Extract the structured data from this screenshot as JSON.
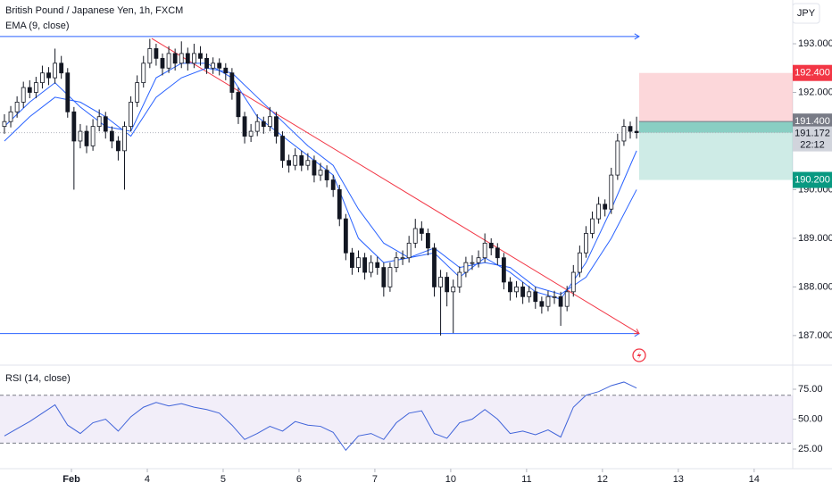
{
  "header": {
    "symbol": "British Pound / Japanese Yen, 1h, FXCM",
    "currency": "JPY"
  },
  "chart_data": [
    {
      "type": "candlestick",
      "up_color": "#ffffff",
      "down_color": "#131722",
      "outline": "#131722",
      "xlim": [
        -0.7,
        124.7
      ],
      "ylim": [
        186.41,
        193.9
      ],
      "yticks": [
        {
          "value": 193,
          "label": "193.000"
        },
        {
          "value": 192,
          "label": "192.000"
        },
        {
          "value": 190,
          "label": "190.000"
        },
        {
          "value": 189,
          "label": "189.000"
        },
        {
          "value": 188,
          "label": "188.000"
        },
        {
          "value": 187,
          "label": "187.000"
        }
      ],
      "xticks": [
        {
          "value": 10.6,
          "label": "Feb"
        },
        {
          "value": 22.6,
          "label": "4"
        },
        {
          "value": 34.6,
          "label": "5"
        },
        {
          "value": 46.6,
          "label": "6"
        },
        {
          "value": 58.6,
          "label": "7"
        },
        {
          "value": 70.6,
          "label": "10"
        },
        {
          "value": 82.6,
          "label": "11"
        },
        {
          "value": 94.6,
          "label": "12"
        },
        {
          "value": 106.6,
          "label": "13"
        },
        {
          "value": 118.6,
          "label": "14"
        }
      ],
      "x": [
        0,
        1,
        2,
        3,
        4,
        5,
        6,
        7,
        8,
        9,
        10,
        11,
        12,
        13,
        14,
        15,
        16,
        17,
        18,
        19,
        20,
        21,
        22,
        23,
        24,
        25,
        26,
        27,
        28,
        29,
        30,
        31,
        32,
        33,
        34,
        35,
        36,
        37,
        38,
        39,
        40,
        41,
        42,
        43,
        44,
        45,
        46,
        47,
        48,
        49,
        50,
        51,
        52,
        53,
        54,
        55,
        56,
        57,
        58,
        59,
        60,
        61,
        62,
        63,
        64,
        65,
        66,
        67,
        68,
        69,
        70,
        71,
        72,
        73,
        74,
        75,
        76,
        77,
        78,
        79,
        80,
        81,
        82,
        83,
        84,
        85,
        86,
        87,
        88,
        89,
        90,
        91,
        92,
        93,
        94,
        95,
        96,
        97,
        98,
        99,
        100
      ],
      "open": [
        191.3,
        191.4,
        191.6,
        191.8,
        192.1,
        192.0,
        192.2,
        192.4,
        192.3,
        192.6,
        192.4,
        191.6,
        191.0,
        191.2,
        190.9,
        191.3,
        191.5,
        191.2,
        191.0,
        190.8,
        191.3,
        191.8,
        192.2,
        192.6,
        192.9,
        192.7,
        192.5,
        192.8,
        192.6,
        192.8,
        192.6,
        192.8,
        192.7,
        192.5,
        192.6,
        192.5,
        192.4,
        192.0,
        191.5,
        191.1,
        191.2,
        191.4,
        191.3,
        191.5,
        191.1,
        190.6,
        190.5,
        190.7,
        190.5,
        190.6,
        190.3,
        190.4,
        190.2,
        190.0,
        189.4,
        188.7,
        188.4,
        188.6,
        188.3,
        188.5,
        188.4,
        188.0,
        188.4,
        188.6,
        188.6,
        188.9,
        189.2,
        189.1,
        188.8,
        188.0,
        188.2,
        187.9,
        188.0,
        188.3,
        188.5,
        188.5,
        188.6,
        188.9,
        188.8,
        188.6,
        188.1,
        187.9,
        188.0,
        187.8,
        187.9,
        187.7,
        187.6,
        187.8,
        187.8,
        187.6,
        187.9,
        188.3,
        188.7,
        189.1,
        189.4,
        189.7,
        189.6,
        190.3,
        191.0,
        191.3,
        191.2
      ],
      "high": [
        191.55,
        191.72,
        191.92,
        192.22,
        192.25,
        192.32,
        192.55,
        192.52,
        192.9,
        192.75,
        192.5,
        191.7,
        191.35,
        191.32,
        191.45,
        191.65,
        191.6,
        191.3,
        191.1,
        191.4,
        191.92,
        192.35,
        192.75,
        193.1,
        193.0,
        192.8,
        192.95,
        192.9,
        193.05,
        192.92,
        193.0,
        192.95,
        192.8,
        192.72,
        192.7,
        192.6,
        192.5,
        192.1,
        191.6,
        191.35,
        191.55,
        191.5,
        191.7,
        191.6,
        191.2,
        190.72,
        190.85,
        190.8,
        190.75,
        190.7,
        190.55,
        190.5,
        190.3,
        190.1,
        189.5,
        188.8,
        188.75,
        188.7,
        188.65,
        188.62,
        188.5,
        188.5,
        188.72,
        188.75,
        189.05,
        189.4,
        189.35,
        189.2,
        188.9,
        188.35,
        188.3,
        188.15,
        188.42,
        188.62,
        188.65,
        188.75,
        189.1,
        189.0,
        188.9,
        188.7,
        188.2,
        188.12,
        188.1,
        188.02,
        188.0,
        187.8,
        187.92,
        187.92,
        187.9,
        188.02,
        188.45,
        188.85,
        189.25,
        189.55,
        189.85,
        189.8,
        190.45,
        191.15,
        191.45,
        191.4,
        191.5
      ],
      "low": [
        191.15,
        191.28,
        191.48,
        191.68,
        191.88,
        191.88,
        192.08,
        192.15,
        192.18,
        192.28,
        191.48,
        190.0,
        190.85,
        190.75,
        190.8,
        191.2,
        191.05,
        190.85,
        190.6,
        190.0,
        191.2,
        191.7,
        192.1,
        192.5,
        192.55,
        192.35,
        192.4,
        192.45,
        192.5,
        192.45,
        192.5,
        192.55,
        192.38,
        192.38,
        192.35,
        192.25,
        191.85,
        191.35,
        190.95,
        190.98,
        191.1,
        191.15,
        191.2,
        190.95,
        190.45,
        190.35,
        190.4,
        190.38,
        190.4,
        190.15,
        190.18,
        190.05,
        189.85,
        189.25,
        188.55,
        188.25,
        188.3,
        188.15,
        188.2,
        188.25,
        187.8,
        187.9,
        188.3,
        188.45,
        188.5,
        188.8,
        188.95,
        188.65,
        187.8,
        187.0,
        187.6,
        187.05,
        187.88,
        188.2,
        188.35,
        188.4,
        188.5,
        188.65,
        188.45,
        187.95,
        187.72,
        187.78,
        187.65,
        187.68,
        187.55,
        187.45,
        187.5,
        187.65,
        187.2,
        187.5,
        187.8,
        188.2,
        188.6,
        189.0,
        189.3,
        189.45,
        189.5,
        190.2,
        190.9,
        191.05,
        191.05
      ],
      "close": [
        191.4,
        191.6,
        191.8,
        192.1,
        192.0,
        192.2,
        192.4,
        192.3,
        192.6,
        192.4,
        191.6,
        191.0,
        191.2,
        190.9,
        191.3,
        191.5,
        191.2,
        191.0,
        190.8,
        191.3,
        191.8,
        192.2,
        192.6,
        192.9,
        192.7,
        192.5,
        192.8,
        192.6,
        192.8,
        192.6,
        192.8,
        192.7,
        192.5,
        192.6,
        192.5,
        192.4,
        192.0,
        191.5,
        191.1,
        191.2,
        191.4,
        191.3,
        191.5,
        191.1,
        190.6,
        190.5,
        190.7,
        190.5,
        190.6,
        190.3,
        190.4,
        190.2,
        190.0,
        189.4,
        188.7,
        188.4,
        188.6,
        188.3,
        188.5,
        188.4,
        188.0,
        188.4,
        188.6,
        188.6,
        188.9,
        189.2,
        189.1,
        188.8,
        188.0,
        188.2,
        187.9,
        188.0,
        188.3,
        188.5,
        188.5,
        188.6,
        188.9,
        188.8,
        188.6,
        188.1,
        187.9,
        188.0,
        187.8,
        187.9,
        187.7,
        187.6,
        187.8,
        187.8,
        187.6,
        187.9,
        188.3,
        188.7,
        189.1,
        189.4,
        189.7,
        189.6,
        190.3,
        191.0,
        191.3,
        191.2,
        191.172
      ],
      "countdown": "22:12",
      "series": [
        {
          "name": "EMA (9, close)",
          "color": "#2962ff",
          "x": [
            0,
            4,
            8,
            12,
            16,
            20,
            24,
            28,
            32,
            36,
            40,
            44,
            48,
            52,
            56,
            60,
            64,
            68,
            72,
            76,
            80,
            84,
            88,
            92,
            96,
            100
          ],
          "values": [
            191.3,
            191.8,
            192.2,
            191.7,
            191.3,
            191.2,
            192.3,
            192.6,
            192.6,
            192.3,
            191.5,
            191.1,
            190.7,
            190.3,
            189.0,
            188.5,
            188.6,
            188.7,
            188.2,
            188.6,
            188.3,
            187.9,
            187.75,
            188.5,
            189.6,
            190.8
          ]
        },
        {
          "color": "#2962ff",
          "x": [
            0,
            4,
            8,
            12,
            16,
            20,
            24,
            28,
            32,
            36,
            40,
            44,
            48,
            52,
            56,
            60,
            64,
            68,
            72,
            76,
            80,
            84,
            88,
            92,
            96,
            100
          ],
          "values": [
            191.0,
            191.5,
            191.9,
            191.8,
            191.5,
            191.1,
            191.9,
            192.3,
            192.5,
            192.4,
            191.9,
            191.4,
            190.9,
            190.5,
            189.6,
            188.9,
            188.6,
            188.8,
            188.4,
            188.5,
            188.4,
            188.0,
            187.85,
            188.2,
            189.0,
            190.0
          ]
        }
      ],
      "drawings": [
        {
          "color": "#2962ff",
          "x": [
            -0.7,
            100.4
          ],
          "y": [
            193.15,
            193.15
          ]
        },
        {
          "color": "#2962ff",
          "x": [
            -0.7,
            100.4
          ],
          "y": [
            187.04,
            187.04
          ]
        },
        {
          "color": "#f23645",
          "x": [
            23.3,
            100.4
          ],
          "y": [
            193.11,
            187.04
          ]
        }
      ],
      "position": {
        "x": 100.4,
        "stop": {
          "value": 192.4,
          "label": "192.400"
        },
        "entry": {
          "value": 191.4,
          "label": "191.400"
        },
        "target": {
          "value": 190.2,
          "label": "190.200"
        }
      }
    },
    {
      "type": "line",
      "title": "RSI (14, close)",
      "color": "#3f63d9",
      "xlim": [
        -0.7,
        124.7
      ],
      "ylim": [
        8.6,
        94.4
      ],
      "yticks": [
        {
          "value": 25,
          "label": "25.00"
        },
        {
          "value": 50,
          "label": "50.00"
        },
        {
          "value": 75,
          "label": "75.00"
        }
      ],
      "bands": [
        30,
        70
      ],
      "x": [
        0,
        2,
        4,
        6,
        8,
        10,
        12,
        14,
        16,
        18,
        20,
        22,
        24,
        26,
        28,
        30,
        32,
        34,
        36,
        38,
        40,
        42,
        44,
        46,
        48,
        50,
        52,
        54,
        56,
        58,
        60,
        62,
        64,
        66,
        68,
        70,
        72,
        74,
        76,
        78,
        80,
        82,
        84,
        86,
        88,
        90,
        92,
        94,
        96,
        98,
        100
      ],
      "values": [
        36,
        42,
        48,
        55,
        62,
        45,
        38,
        47,
        50,
        40,
        52,
        60,
        64,
        61,
        63,
        60,
        58,
        55,
        45,
        33,
        38,
        44,
        40,
        48,
        45,
        44,
        39,
        24,
        36,
        38,
        33,
        47,
        55,
        57,
        38,
        34,
        47,
        50,
        58,
        50,
        38,
        40,
        37,
        41,
        35,
        60,
        70,
        73,
        78,
        81,
        76
      ]
    }
  ]
}
